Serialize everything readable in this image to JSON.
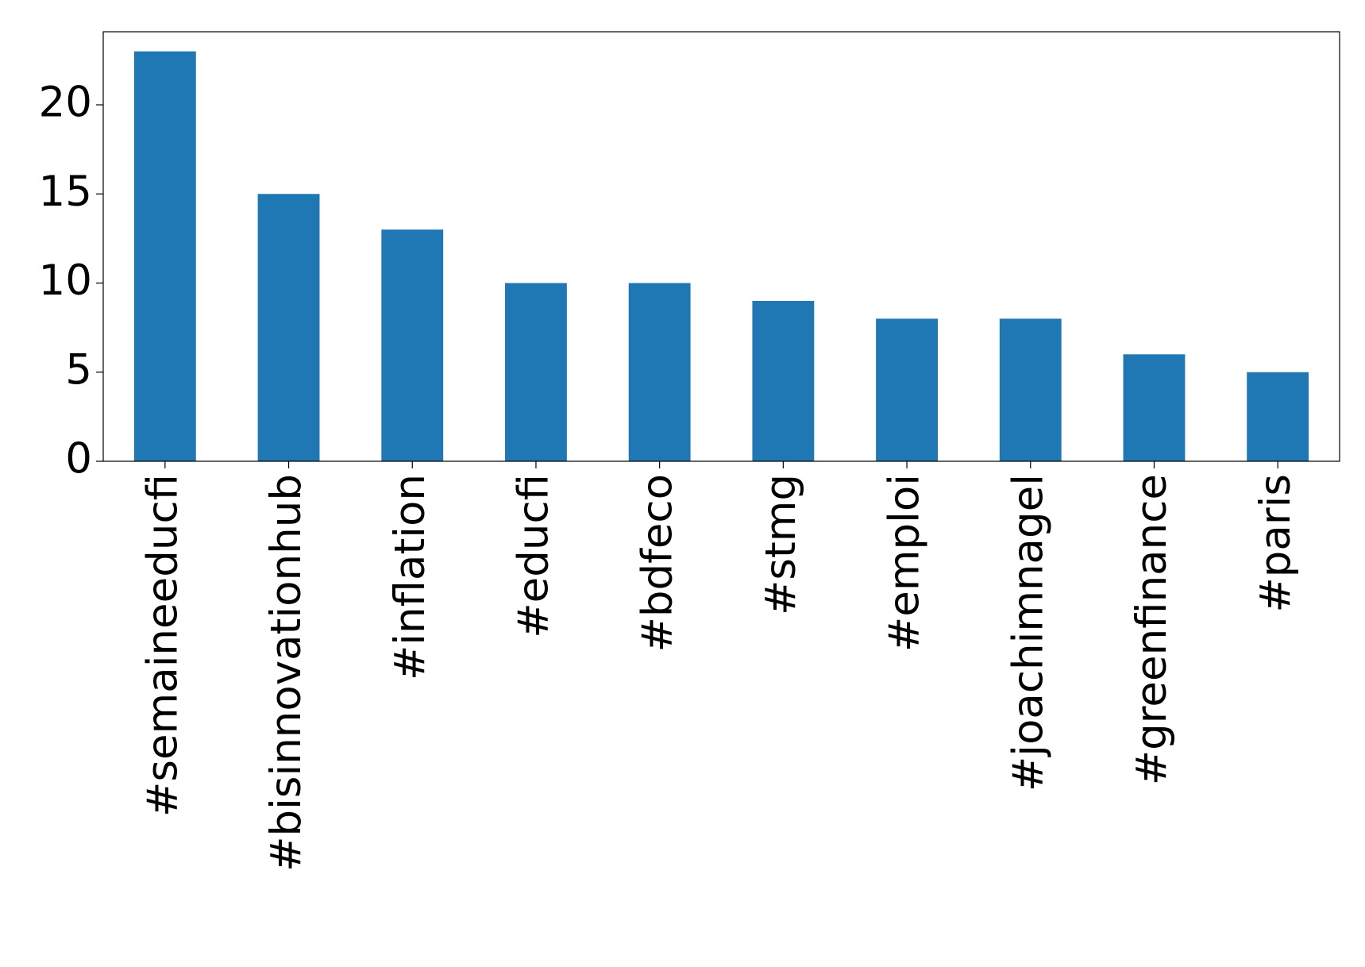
{
  "chart_data": {
    "type": "bar",
    "categories": [
      "#semaineeducfi",
      "#bisinnovationhub",
      "#inflation",
      "#educfi",
      "#bdfeco",
      "#stmg",
      "#emploi",
      "#joachimnagel",
      "#greenfinance",
      "#paris"
    ],
    "values": [
      23,
      15,
      13,
      10,
      10,
      9,
      8,
      8,
      6,
      5
    ],
    "color": "#1f77b4",
    "ylim": [
      0,
      24.1
    ],
    "yticks": [
      0,
      5,
      10,
      15,
      20
    ],
    "grid": false
  }
}
